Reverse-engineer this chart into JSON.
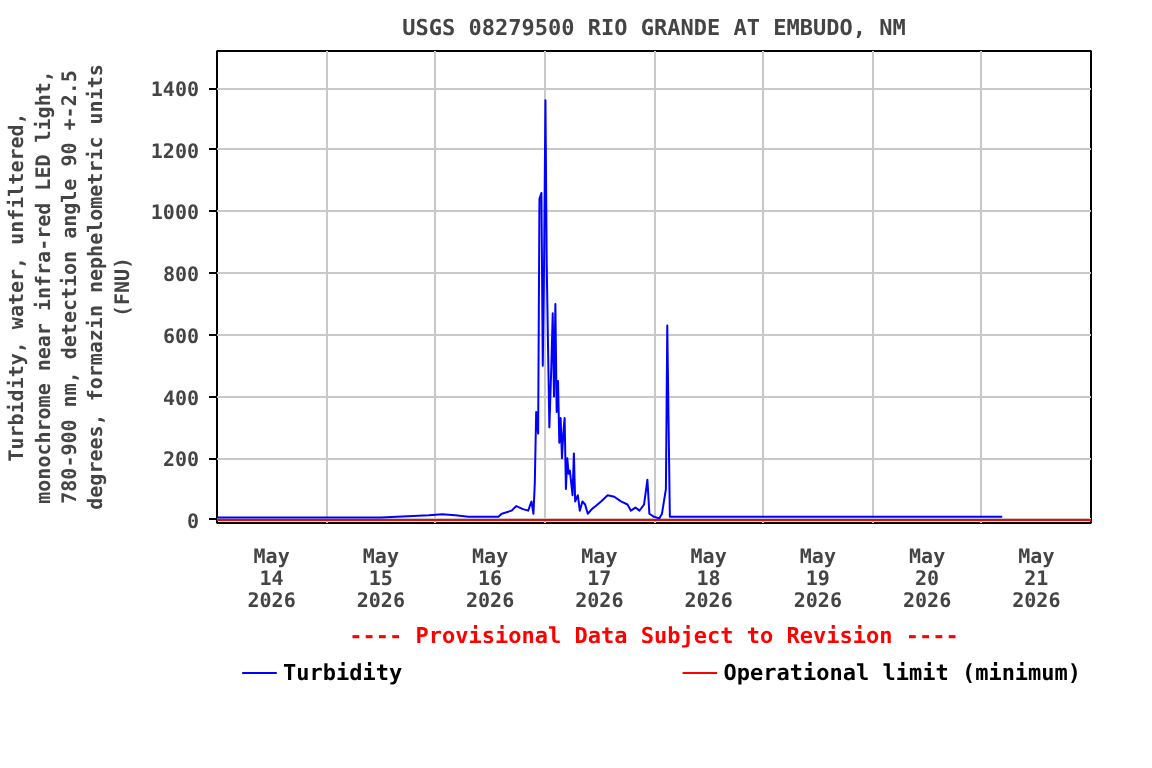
{
  "chart_data": {
    "type": "line",
    "title": "USGS 08279500 RIO GRANDE AT EMBUDO, NM",
    "ylabel": "Turbidity, water, unfiltered, monochrome near infra-red LED light, 780-900 nm, detection angle 90 +-2.5 degrees, formazin nephelometric units (FNU)",
    "annotations": [
      "---- Provisional Data Subject to Revision ----"
    ],
    "xlim": [
      "2026-05-14T00:00",
      "2026-05-22T00:00"
    ],
    "xticks": [
      {
        "value": "2026-05-14T00:00",
        "label": null
      },
      {
        "value": "2026-05-14T12:00",
        "label": "May\n14\n2026"
      },
      {
        "value": "2026-05-15T00:00",
        "label": null
      },
      {
        "value": "2026-05-15T12:00",
        "label": "May\n15\n2026"
      },
      {
        "value": "2026-05-16T00:00",
        "label": null
      },
      {
        "value": "2026-05-16T12:00",
        "label": "May\n16\n2026"
      },
      {
        "value": "2026-05-17T00:00",
        "label": null
      },
      {
        "value": "2026-05-17T12:00",
        "label": "May\n17\n2026"
      },
      {
        "value": "2026-05-18T00:00",
        "label": null
      },
      {
        "value": "2026-05-18T12:00",
        "label": "May\n18\n2026"
      },
      {
        "value": "2026-05-19T00:00",
        "label": null
      },
      {
        "value": "2026-05-19T12:00",
        "label": "May\n19\n2026"
      },
      {
        "value": "2026-05-20T00:00",
        "label": null
      },
      {
        "value": "2026-05-20T12:00",
        "label": "May\n20\n2026"
      },
      {
        "value": "2026-05-21T00:00",
        "label": null
      },
      {
        "value": "2026-05-21T12:00",
        "label": "May\n21\n2026"
      },
      {
        "value": "2026-05-22T00:00",
        "label": null
      }
    ],
    "ylim": [
      -10,
      1520
    ],
    "yticks": [
      0,
      200,
      400,
      600,
      800,
      1000,
      1200,
      1400
    ],
    "grid": true,
    "legend": "bottom",
    "ref_lines": [
      {
        "axis": "y",
        "value": 0,
        "label": "Operational limit (minimum)",
        "color": "#ff0000"
      }
    ],
    "series": [
      {
        "name": "Turbidity",
        "color": "#0000ff",
        "x": [
          "2026-05-14T00:00",
          "2026-05-15T12:00",
          "2026-05-15T22:33",
          "2026-05-16T01:27",
          "2026-05-16T04:22",
          "2026-05-16T07:16",
          "2026-05-16T13:49",
          "2026-05-16T14:33",
          "2026-05-16T16:44",
          "2026-05-16T17:45",
          "2026-05-16T19:12",
          "2026-05-16T20:22",
          "2026-05-16T21:05",
          "2026-05-16T21:31",
          "2026-05-16T21:49",
          "2026-05-16T22:07",
          "2026-05-16T22:33",
          "2026-05-16T22:50",
          "2026-05-16T23:16",
          "2026-05-16T23:34",
          "2026-05-16T23:51",
          "2026-05-17T00:09",
          "2026-05-17T00:26",
          "2026-05-17T00:44",
          "2026-05-17T01:01",
          "2026-05-17T01:27",
          "2026-05-17T01:45",
          "2026-05-17T02:02",
          "2026-05-17T02:20",
          "2026-05-17T02:37",
          "2026-05-17T02:55",
          "2026-05-17T03:12",
          "2026-05-17T03:29",
          "2026-05-17T03:47",
          "2026-05-17T04:04",
          "2026-05-17T04:22",
          "2026-05-17T04:39",
          "2026-05-17T04:57",
          "2026-05-17T05:14",
          "2026-05-17T05:31",
          "2026-05-17T06:06",
          "2026-05-17T06:24",
          "2026-05-17T06:41",
          "2026-05-17T07:16",
          "2026-05-17T07:42",
          "2026-05-17T08:17",
          "2026-05-17T08:52",
          "2026-05-17T09:27",
          "2026-05-17T10:20",
          "2026-05-17T11:12",
          "2026-05-17T12:22",
          "2026-05-17T13:49",
          "2026-05-17T15:16",
          "2026-05-17T16:44",
          "2026-05-17T18:11",
          "2026-05-17T18:55",
          "2026-05-17T19:56",
          "2026-05-17T20:48",
          "2026-05-17T21:49",
          "2026-05-17T22:33",
          "2026-05-17T22:59",
          "2026-05-18T00:00",
          "2026-05-18T01:10",
          "2026-05-18T01:45",
          "2026-05-18T02:11",
          "2026-05-18T02:37",
          "2026-05-18T02:55",
          "2026-05-18T03:12",
          "2026-05-18T03:29",
          "2026-05-21T04:30"
        ],
        "values": [
          8,
          8,
          15,
          18,
          15,
          10,
          10,
          20,
          30,
          45,
          35,
          30,
          60,
          20,
          120,
          350,
          280,
          1040,
          1060,
          500,
          830,
          1360,
          830,
          550,
          300,
          500,
          670,
          400,
          700,
          350,
          450,
          250,
          330,
          200,
          280,
          330,
          100,
          200,
          150,
          160,
          80,
          215,
          60,
          80,
          30,
          60,
          50,
          20,
          35,
          45,
          60,
          80,
          75,
          60,
          50,
          30,
          40,
          30,
          50,
          130,
          20,
          10,
          5,
          20,
          60,
          100,
          630,
          320,
          10,
          10
        ]
      }
    ]
  }
}
